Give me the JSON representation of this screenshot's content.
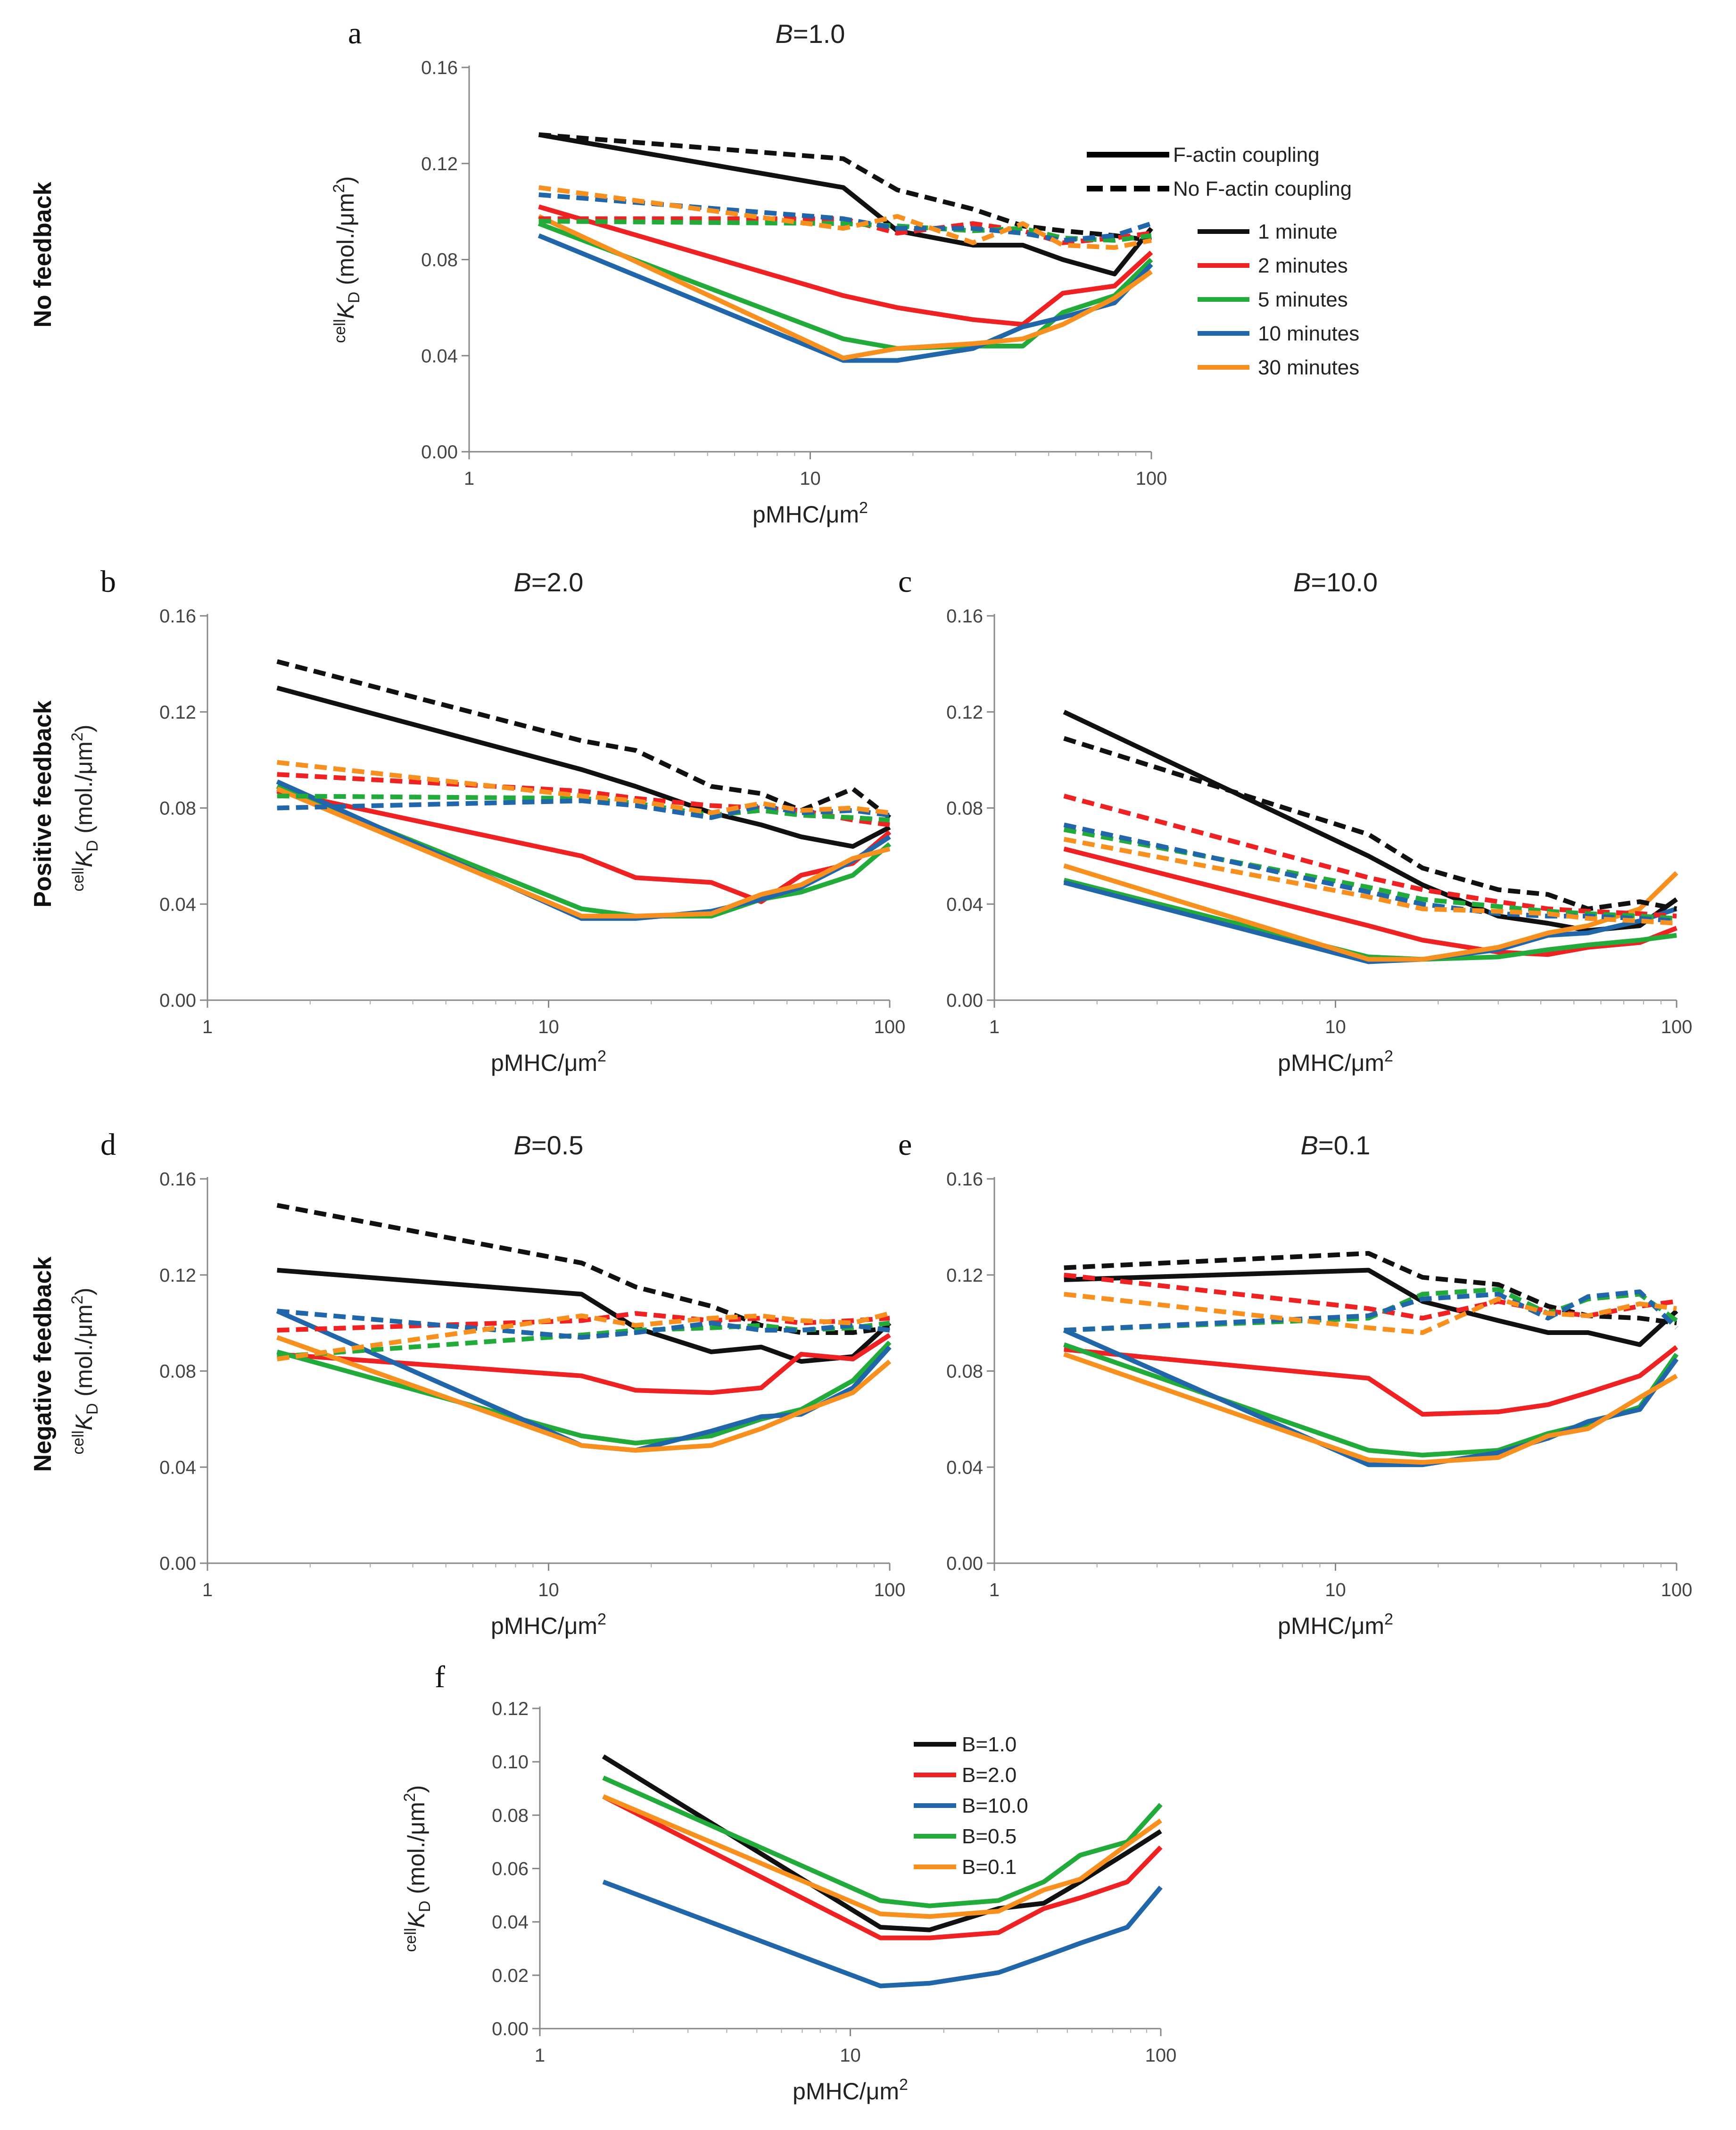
{
  "row_labels": [
    "No feedback",
    "Positive feedback",
    "Negative feedback"
  ],
  "legend": {
    "style_items": [
      "F-actin coupling",
      "No F-actin coupling"
    ],
    "time_items": [
      "1 minute",
      "2 minutes",
      "5 minutes",
      "10 minutes",
      "30 minutes"
    ]
  },
  "colors": {
    "1 minute": "#111111",
    "2 minutes": "#ee2222",
    "5 minutes": "#22aa3a",
    "10 minutes": "#2166a8",
    "30 minutes": "#f7901e"
  },
  "chart_data": [
    {
      "id": "a",
      "type": "line",
      "letter": "a",
      "title_var": "B",
      "title_val": "=1.0",
      "xlabel": "pMHC/μm",
      "xlabel_sup": "2",
      "ylabel": "K",
      "ylabel_pre": "cell",
      "ylabel_sub": "D",
      "ylabel_post": " (mol./μm",
      "ylabel_sup": "2",
      "ylabel_end": ")",
      "xscale": "log",
      "xlim": [
        1,
        100
      ],
      "xticks": [
        "1",
        "10",
        "100"
      ],
      "ylim": [
        0,
        0.16
      ],
      "yticks": [
        "0.00",
        "0.04",
        "0.08",
        "0.12",
        "0.16"
      ],
      "x": [
        1.6,
        12.5,
        18,
        30,
        42,
        55,
        78,
        100
      ],
      "series": [
        {
          "name": "1 minute",
          "style": "solid",
          "values": [
            0.132,
            0.11,
            0.092,
            0.086,
            0.086,
            0.08,
            0.074,
            0.093
          ]
        },
        {
          "name": "2 minutes",
          "style": "solid",
          "values": [
            0.102,
            0.065,
            0.06,
            0.055,
            0.053,
            0.066,
            0.069,
            0.083
          ]
        },
        {
          "name": "5 minutes",
          "style": "solid",
          "values": [
            0.095,
            0.047,
            0.043,
            0.044,
            0.044,
            0.058,
            0.065,
            0.08
          ]
        },
        {
          "name": "10 minutes",
          "style": "solid",
          "values": [
            0.09,
            0.038,
            0.038,
            0.043,
            0.052,
            0.056,
            0.062,
            0.078
          ]
        },
        {
          "name": "30 minutes",
          "style": "solid",
          "values": [
            0.098,
            0.039,
            0.043,
            0.045,
            0.047,
            0.053,
            0.064,
            0.075
          ]
        },
        {
          "name": "1 minute",
          "style": "dashed",
          "values": [
            0.132,
            0.122,
            0.109,
            0.101,
            0.094,
            0.092,
            0.09,
            0.088
          ]
        },
        {
          "name": "2 minutes",
          "style": "dashed",
          "values": [
            0.097,
            0.097,
            0.091,
            0.095,
            0.092,
            0.087,
            0.089,
            0.091
          ]
        },
        {
          "name": "5 minutes",
          "style": "dashed",
          "values": [
            0.096,
            0.095,
            0.094,
            0.092,
            0.093,
            0.089,
            0.088,
            0.09
          ]
        },
        {
          "name": "10 minutes",
          "style": "dashed",
          "values": [
            0.107,
            0.097,
            0.093,
            0.093,
            0.091,
            0.088,
            0.09,
            0.095
          ]
        },
        {
          "name": "30 minutes",
          "style": "dashed",
          "values": [
            0.11,
            0.093,
            0.098,
            0.087,
            0.095,
            0.086,
            0.085,
            0.088
          ]
        }
      ]
    },
    {
      "id": "b",
      "type": "line",
      "letter": "b",
      "title_var": "B",
      "title_val": "=2.0",
      "xlabel": "pMHC/μm",
      "xlabel_sup": "2",
      "ylabel": "K",
      "ylabel_pre": "cell",
      "ylabel_sub": "D",
      "ylabel_post": " (mol./μm",
      "ylabel_sup": "2",
      "ylabel_end": ")",
      "xscale": "log",
      "xlim": [
        1,
        100
      ],
      "xticks": [
        "1",
        "10",
        "100"
      ],
      "ylim": [
        0,
        0.16
      ],
      "yticks": [
        "0.00",
        "0.04",
        "0.08",
        "0.12",
        "0.16"
      ],
      "x": [
        1.6,
        12.5,
        18,
        30,
        42,
        55,
        78,
        100
      ],
      "series": [
        {
          "name": "1 minute",
          "style": "solid",
          "values": [
            0.13,
            0.096,
            0.089,
            0.078,
            0.073,
            0.068,
            0.064,
            0.072
          ]
        },
        {
          "name": "2 minutes",
          "style": "solid",
          "values": [
            0.087,
            0.06,
            0.051,
            0.049,
            0.041,
            0.052,
            0.057,
            0.07
          ]
        },
        {
          "name": "5 minutes",
          "style": "solid",
          "values": [
            0.089,
            0.038,
            0.035,
            0.035,
            0.042,
            0.045,
            0.052,
            0.065
          ]
        },
        {
          "name": "10 minutes",
          "style": "solid",
          "values": [
            0.091,
            0.034,
            0.034,
            0.037,
            0.042,
            0.047,
            0.058,
            0.068
          ]
        },
        {
          "name": "30 minutes",
          "style": "solid",
          "values": [
            0.088,
            0.035,
            0.035,
            0.036,
            0.044,
            0.048,
            0.059,
            0.063
          ]
        },
        {
          "name": "1 minute",
          "style": "dashed",
          "values": [
            0.141,
            0.108,
            0.104,
            0.089,
            0.086,
            0.079,
            0.088,
            0.076
          ]
        },
        {
          "name": "2 minutes",
          "style": "dashed",
          "values": [
            0.094,
            0.087,
            0.084,
            0.081,
            0.08,
            0.079,
            0.075,
            0.073
          ]
        },
        {
          "name": "5 minutes",
          "style": "dashed",
          "values": [
            0.085,
            0.084,
            0.082,
            0.077,
            0.079,
            0.077,
            0.076,
            0.075
          ]
        },
        {
          "name": "10 minutes",
          "style": "dashed",
          "values": [
            0.08,
            0.083,
            0.081,
            0.076,
            0.081,
            0.078,
            0.079,
            0.077
          ]
        },
        {
          "name": "30 minutes",
          "style": "dashed",
          "values": [
            0.099,
            0.085,
            0.083,
            0.078,
            0.082,
            0.079,
            0.08,
            0.078
          ]
        }
      ]
    },
    {
      "id": "c",
      "type": "line",
      "letter": "c",
      "title_var": "B",
      "title_val": "=10.0",
      "xlabel": "pMHC/μm",
      "xlabel_sup": "2",
      "xscale": "log",
      "xlim": [
        1,
        100
      ],
      "xticks": [
        "1",
        "10",
        "100"
      ],
      "ylim": [
        0,
        0.16
      ],
      "yticks": [
        "0.00",
        "0.04",
        "0.08",
        "0.12",
        "0.16"
      ],
      "x": [
        1.6,
        12.5,
        18,
        30,
        42,
        55,
        78,
        100
      ],
      "series": [
        {
          "name": "1 minute",
          "style": "solid",
          "values": [
            0.12,
            0.06,
            0.048,
            0.035,
            0.032,
            0.029,
            0.031,
            0.042
          ]
        },
        {
          "name": "2 minutes",
          "style": "solid",
          "values": [
            0.063,
            0.031,
            0.025,
            0.02,
            0.019,
            0.022,
            0.024,
            0.03
          ]
        },
        {
          "name": "5 minutes",
          "style": "solid",
          "values": [
            0.05,
            0.018,
            0.017,
            0.018,
            0.021,
            0.023,
            0.025,
            0.027
          ]
        },
        {
          "name": "10 minutes",
          "style": "solid",
          "values": [
            0.049,
            0.016,
            0.017,
            0.021,
            0.027,
            0.028,
            0.033,
            0.038
          ]
        },
        {
          "name": "30 minutes",
          "style": "solid",
          "values": [
            0.056,
            0.017,
            0.017,
            0.022,
            0.028,
            0.031,
            0.038,
            0.053
          ]
        },
        {
          "name": "1 minute",
          "style": "dashed",
          "values": [
            0.109,
            0.069,
            0.055,
            0.046,
            0.044,
            0.038,
            0.041,
            0.038
          ]
        },
        {
          "name": "2 minutes",
          "style": "dashed",
          "values": [
            0.085,
            0.051,
            0.046,
            0.041,
            0.038,
            0.037,
            0.036,
            0.035
          ]
        },
        {
          "name": "5 minutes",
          "style": "dashed",
          "values": [
            0.071,
            0.047,
            0.042,
            0.039,
            0.037,
            0.036,
            0.035,
            0.034
          ]
        },
        {
          "name": "10 minutes",
          "style": "dashed",
          "values": [
            0.073,
            0.045,
            0.04,
            0.036,
            0.035,
            0.035,
            0.034,
            0.033
          ]
        },
        {
          "name": "30 minutes",
          "style": "dashed",
          "values": [
            0.067,
            0.043,
            0.038,
            0.037,
            0.036,
            0.034,
            0.033,
            0.032
          ]
        }
      ]
    },
    {
      "id": "d",
      "type": "line",
      "letter": "d",
      "title_var": "B",
      "title_val": "=0.5",
      "xlabel": "pMHC/μm",
      "xlabel_sup": "2",
      "ylabel": "K",
      "ylabel_pre": "cell",
      "ylabel_sub": "D",
      "ylabel_post": " (mol./μm",
      "ylabel_sup": "2",
      "ylabel_end": ")",
      "xscale": "log",
      "xlim": [
        1,
        100
      ],
      "xticks": [
        "1",
        "10",
        "100"
      ],
      "ylim": [
        0,
        0.16
      ],
      "yticks": [
        "0.00",
        "0.04",
        "0.08",
        "0.12",
        "0.16"
      ],
      "x": [
        1.6,
        12.5,
        18,
        30,
        42,
        55,
        78,
        100
      ],
      "series": [
        {
          "name": "1 minute",
          "style": "solid",
          "values": [
            0.122,
            0.112,
            0.098,
            0.088,
            0.09,
            0.084,
            0.086,
            0.1
          ]
        },
        {
          "name": "2 minutes",
          "style": "solid",
          "values": [
            0.087,
            0.078,
            0.072,
            0.071,
            0.073,
            0.087,
            0.085,
            0.095
          ]
        },
        {
          "name": "5 minutes",
          "style": "solid",
          "values": [
            0.088,
            0.053,
            0.05,
            0.053,
            0.06,
            0.064,
            0.076,
            0.092
          ]
        },
        {
          "name": "10 minutes",
          "style": "solid",
          "values": [
            0.105,
            0.049,
            0.047,
            0.055,
            0.061,
            0.062,
            0.073,
            0.09
          ]
        },
        {
          "name": "30 minutes",
          "style": "solid",
          "values": [
            0.094,
            0.049,
            0.047,
            0.049,
            0.056,
            0.063,
            0.071,
            0.084
          ]
        },
        {
          "name": "1 minute",
          "style": "dashed",
          "values": [
            0.149,
            0.125,
            0.115,
            0.107,
            0.099,
            0.096,
            0.096,
            0.098
          ]
        },
        {
          "name": "2 minutes",
          "style": "dashed",
          "values": [
            0.097,
            0.101,
            0.104,
            0.101,
            0.102,
            0.1,
            0.101,
            0.102
          ]
        },
        {
          "name": "5 minutes",
          "style": "dashed",
          "values": [
            0.086,
            0.095,
            0.097,
            0.098,
            0.099,
            0.097,
            0.098,
            0.1
          ]
        },
        {
          "name": "10 minutes",
          "style": "dashed",
          "values": [
            0.105,
            0.094,
            0.096,
            0.1,
            0.097,
            0.097,
            0.099,
            0.097
          ]
        },
        {
          "name": "30 minutes",
          "style": "dashed",
          "values": [
            0.085,
            0.103,
            0.099,
            0.102,
            0.103,
            0.101,
            0.1,
            0.104
          ]
        }
      ]
    },
    {
      "id": "e",
      "type": "line",
      "letter": "e",
      "title_var": "B",
      "title_val": "=0.1",
      "xlabel": "pMHC/μm",
      "xlabel_sup": "2",
      "xscale": "log",
      "xlim": [
        1,
        100
      ],
      "xticks": [
        "1",
        "10",
        "100"
      ],
      "ylim": [
        0,
        0.16
      ],
      "yticks": [
        "0.00",
        "0.04",
        "0.08",
        "0.12",
        "0.16"
      ],
      "x": [
        1.6,
        12.5,
        18,
        30,
        42,
        55,
        78,
        100
      ],
      "series": [
        {
          "name": "1 minute",
          "style": "solid",
          "values": [
            0.118,
            0.122,
            0.109,
            0.101,
            0.096,
            0.096,
            0.091,
            0.105
          ]
        },
        {
          "name": "2 minutes",
          "style": "solid",
          "values": [
            0.089,
            0.077,
            0.062,
            0.063,
            0.066,
            0.071,
            0.078,
            0.09
          ]
        },
        {
          "name": "5 minutes",
          "style": "solid",
          "values": [
            0.091,
            0.047,
            0.045,
            0.047,
            0.054,
            0.058,
            0.065,
            0.087
          ]
        },
        {
          "name": "10 minutes",
          "style": "solid",
          "values": [
            0.097,
            0.041,
            0.041,
            0.046,
            0.052,
            0.059,
            0.064,
            0.085
          ]
        },
        {
          "name": "30 minutes",
          "style": "solid",
          "values": [
            0.087,
            0.043,
            0.042,
            0.044,
            0.053,
            0.056,
            0.069,
            0.078
          ]
        },
        {
          "name": "1 minute",
          "style": "dashed",
          "values": [
            0.123,
            0.129,
            0.119,
            0.116,
            0.107,
            0.103,
            0.102,
            0.1
          ]
        },
        {
          "name": "2 minutes",
          "style": "dashed",
          "values": [
            0.12,
            0.106,
            0.102,
            0.109,
            0.105,
            0.103,
            0.107,
            0.109
          ]
        },
        {
          "name": "5 minutes",
          "style": "dashed",
          "values": [
            0.097,
            0.102,
            0.112,
            0.114,
            0.104,
            0.11,
            0.112,
            0.101
          ]
        },
        {
          "name": "10 minutes",
          "style": "dashed",
          "values": [
            0.097,
            0.103,
            0.11,
            0.112,
            0.102,
            0.111,
            0.113,
            0.098
          ]
        },
        {
          "name": "30 minutes",
          "style": "dashed",
          "values": [
            0.112,
            0.098,
            0.096,
            0.11,
            0.104,
            0.103,
            0.108,
            0.106
          ]
        }
      ]
    },
    {
      "id": "f",
      "type": "line",
      "letter": "f",
      "xlabel": "pMHC/μm",
      "xlabel_sup": "2",
      "ylabel": "K",
      "ylabel_pre": "cell",
      "ylabel_sub": "D",
      "ylabel_post": " (mol./μm",
      "ylabel_sup": "2",
      "ylabel_end": ")",
      "xscale": "log",
      "xlim": [
        1,
        100
      ],
      "xticks": [
        "1",
        "10",
        "100"
      ],
      "ylim": [
        0,
        0.12
      ],
      "yticks": [
        "0.00",
        "0.02",
        "0.04",
        "0.06",
        "0.08",
        "0.10",
        "0.12"
      ],
      "x": [
        1.6,
        12.5,
        18,
        30,
        42,
        55,
        78,
        100
      ],
      "legend_entries": [
        "B=1.0",
        "B=2.0",
        "B=10.0",
        "B=0.5",
        "B=0.1"
      ],
      "series": [
        {
          "name": "B=1.0",
          "color": "#111111",
          "values": [
            0.102,
            0.038,
            0.037,
            0.045,
            0.047,
            0.055,
            0.066,
            0.074
          ]
        },
        {
          "name": "B=2.0",
          "color": "#ee2222",
          "values": [
            0.087,
            0.034,
            0.034,
            0.036,
            0.045,
            0.049,
            0.055,
            0.068
          ]
        },
        {
          "name": "B=10.0",
          "color": "#2166a8",
          "values": [
            0.055,
            0.016,
            0.017,
            0.021,
            0.027,
            0.032,
            0.038,
            0.053
          ]
        },
        {
          "name": "B=0.5",
          "color": "#22aa3a",
          "values": [
            0.094,
            0.048,
            0.046,
            0.048,
            0.055,
            0.065,
            0.07,
            0.084
          ]
        },
        {
          "name": "B=0.1",
          "color": "#f7901e",
          "values": [
            0.087,
            0.043,
            0.042,
            0.044,
            0.052,
            0.056,
            0.069,
            0.078
          ]
        }
      ]
    }
  ]
}
